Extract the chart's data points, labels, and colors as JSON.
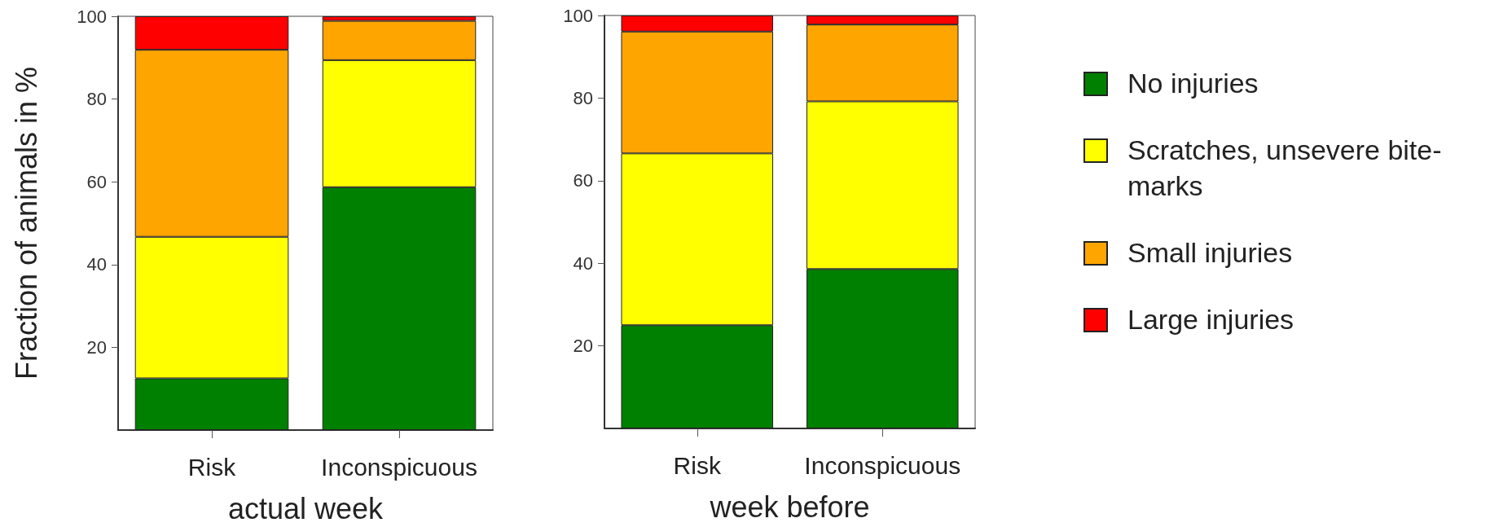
{
  "chart_data": [
    {
      "type": "bar",
      "stacked": true,
      "ylabel": "Fraction of animals in %",
      "xlabel": "actual week",
      "categories": [
        "Risk",
        "Inconspicuous"
      ],
      "ylim": [
        0,
        100
      ],
      "yticks": [
        20,
        40,
        60,
        80,
        100
      ],
      "grid": false,
      "legend": false,
      "series": [
        {
          "color": "#008000",
          "values": [
            12.5,
            58.7
          ]
        },
        {
          "color": "#ffff00",
          "values": [
            34.2,
            30.7
          ]
        },
        {
          "color": "#ffa500",
          "values": [
            45.2,
            9.5
          ]
        },
        {
          "color": "#ff0000",
          "values": [
            8.1,
            1.1
          ]
        }
      ]
    },
    {
      "type": "bar",
      "stacked": true,
      "xlabel": "week before",
      "categories": [
        "Risk",
        "Inconspicuous"
      ],
      "ylim": [
        0,
        100
      ],
      "yticks": [
        20,
        40,
        60,
        80,
        100
      ],
      "grid": false,
      "legend": "right",
      "series": [
        {
          "name": "No injuries",
          "color": "#008000",
          "values": [
            25.0,
            38.6
          ]
        },
        {
          "name": "Scratches, unsevere bite-marks",
          "color": "#ffff00",
          "values": [
            41.6,
            40.6
          ]
        },
        {
          "name": "Small injuries",
          "color": "#ffa500",
          "values": [
            29.5,
            18.6
          ]
        },
        {
          "name": "Large injuries",
          "color": "#ff0000",
          "values": [
            3.9,
            2.2
          ]
        }
      ]
    }
  ]
}
